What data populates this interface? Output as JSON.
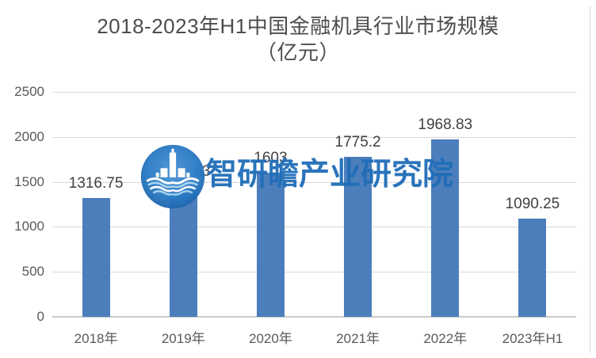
{
  "title": {
    "line1": "2018-2023年H1中国金融机具行业市场规模",
    "line2": "（亿元）"
  },
  "watermark": {
    "name": "智研瞻产业研究院",
    "logo": "zhiyanzhan-institute-logo"
  },
  "chart_data": {
    "type": "bar",
    "title": "2018-2023年H1中国金融机具行业市场规模（亿元）",
    "categories": [
      "2018年",
      "2019年",
      "2020年",
      "2021年",
      "2022年",
      "2023年H1"
    ],
    "values": [
      1316.75,
      1448.63,
      1603,
      1775.2,
      1968.83,
      1090.25
    ],
    "data_labels": [
      "1316.75",
      "1448.63",
      "1603",
      "1775.2",
      "1968.83",
      "1090.25"
    ],
    "ylim": [
      0,
      2500
    ],
    "yticks": [
      0,
      500,
      1000,
      1500,
      2000,
      2500
    ],
    "xlabel": "",
    "ylabel": "",
    "grid": true,
    "legend": false,
    "bar_color": "#4b7ebb"
  },
  "colors": {
    "bar": "#4b7ebb",
    "title_text": "#4d4d4d",
    "axis_text": "#595959",
    "data_label_text": "#404040",
    "gridline": "#d9d9d9",
    "axis_line": "#c9c9c9",
    "watermark_text": "#1f6db8",
    "logo_blue": "#2b7bc5",
    "border": "#d9d9d9"
  }
}
